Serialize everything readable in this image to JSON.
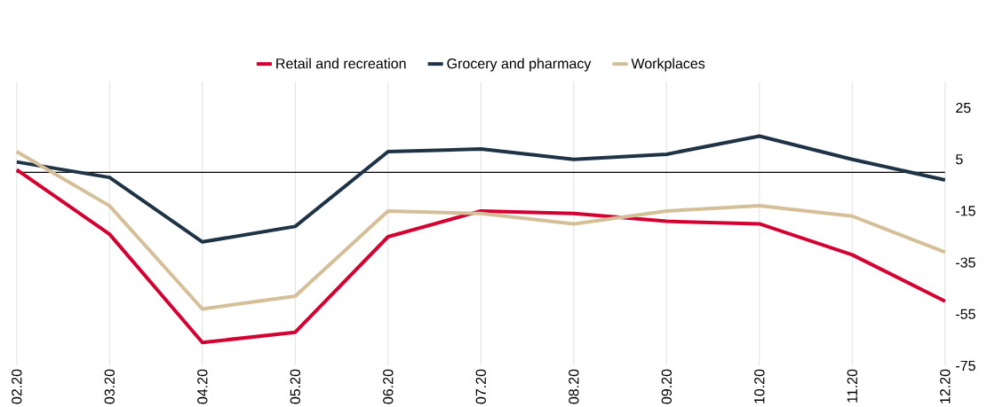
{
  "chart_data": {
    "type": "line",
    "categories": [
      "02.20",
      "03.20",
      "04.20",
      "05.20",
      "06.20",
      "07.20",
      "08.20",
      "09.20",
      "10.20",
      "11.20",
      "12.20"
    ],
    "series": [
      {
        "name": "Retail and recreation",
        "color": "#d50032",
        "values": [
          1,
          -24,
          -66,
          -62,
          -25,
          -15,
          -16,
          -19,
          -20,
          -32,
          -50
        ]
      },
      {
        "name": "Grocery and pharmacy",
        "color": "#1f3347",
        "values": [
          4,
          -2,
          -27,
          -21,
          8,
          9,
          5,
          7,
          14,
          5,
          -3
        ]
      },
      {
        "name": "Workplaces",
        "color": "#d4bf98",
        "values": [
          8,
          -13,
          -53,
          -48,
          -15,
          -16,
          -20,
          -15,
          -13,
          -17,
          -31
        ]
      }
    ],
    "ylim": [
      -75,
      35
    ],
    "yticks": [
      -75,
      -55,
      -35,
      -15,
      5,
      25
    ],
    "grid": "x",
    "legend": "top",
    "ref_lines": [
      {
        "axis": "y",
        "value": 0,
        "color": "#000000"
      }
    ]
  }
}
